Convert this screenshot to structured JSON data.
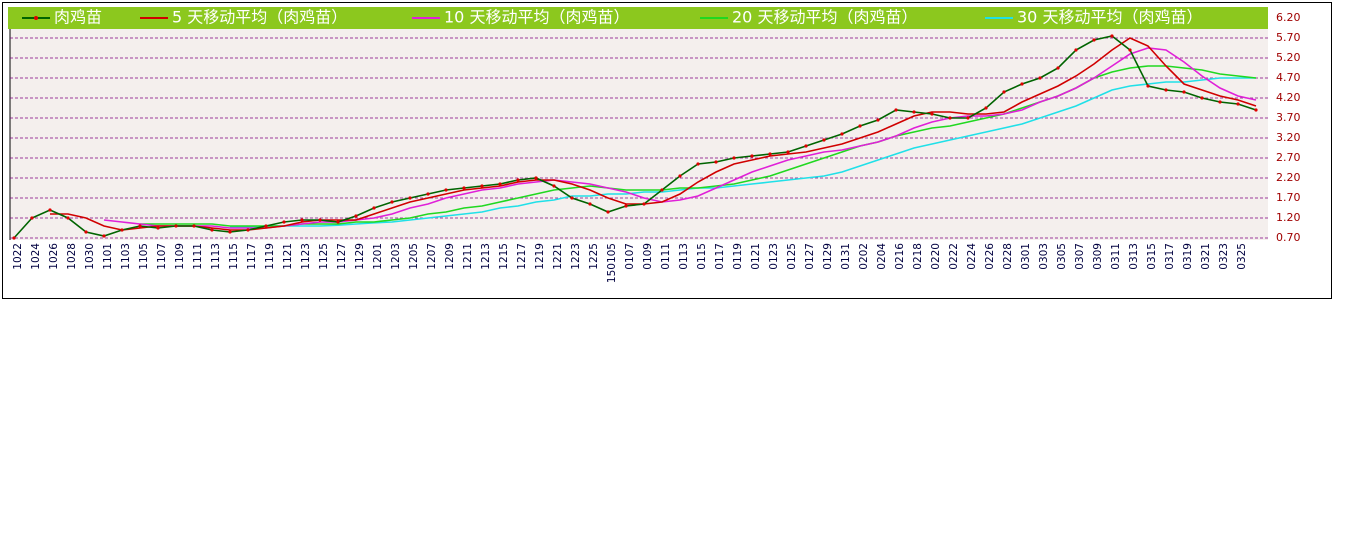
{
  "chart_data": {
    "type": "line",
    "categories": [
      "1022",
      "1024",
      "1026",
      "1028",
      "1030",
      "1101",
      "1103",
      "1105",
      "1107",
      "1109",
      "1111",
      "1113",
      "1115",
      "1117",
      "1119",
      "1121",
      "1123",
      "1125",
      "1127",
      "1129",
      "1201",
      "1203",
      "1205",
      "1207",
      "1209",
      "1211",
      "1213",
      "1215",
      "1217",
      "1219",
      "1221",
      "1223",
      "1225",
      "150105",
      "0107",
      "0109",
      "0111",
      "0113",
      "0115",
      "0117",
      "0119",
      "0121",
      "0123",
      "0125",
      "0127",
      "0129",
      "0131",
      "0202",
      "0204",
      "0216",
      "0218",
      "0220",
      "0222",
      "0224",
      "0226",
      "0228",
      "0301",
      "0303",
      "0305",
      "0307",
      "0309",
      "0311",
      "0313",
      "0315",
      "0317",
      "0319",
      "0321",
      "0323",
      "0325",
      null
    ],
    "series": [
      {
        "name": "肉鸡苗",
        "color": "#006400",
        "marker_color": "#e00000",
        "values": [
          0.7,
          1.2,
          1.4,
          1.2,
          0.85,
          0.75,
          0.9,
          1.0,
          0.95,
          1.0,
          1.0,
          0.9,
          0.85,
          0.9,
          1.0,
          1.1,
          1.15,
          1.15,
          1.1,
          1.25,
          1.45,
          1.6,
          1.7,
          1.8,
          1.9,
          1.95,
          2.0,
          2.05,
          2.15,
          2.2,
          2.0,
          1.7,
          1.55,
          1.35,
          1.5,
          1.55,
          1.9,
          2.25,
          2.55,
          2.6,
          2.7,
          2.75,
          2.8,
          2.85,
          3.0,
          3.15,
          3.3,
          3.5,
          3.65,
          3.9,
          3.85,
          3.8,
          3.7,
          3.7,
          3.95,
          4.35,
          4.55,
          4.7,
          4.95,
          5.4,
          5.65,
          5.75,
          5.4,
          4.5,
          4.4,
          4.35,
          4.2,
          4.1,
          4.05,
          3.9
        ]
      },
      {
        "name": "5 天移动平均（肉鸡苗）",
        "color": "#d00000",
        "values": [
          null,
          null,
          1.3,
          1.3,
          1.2,
          1.0,
          0.9,
          0.95,
          1.0,
          1.0,
          1.0,
          0.95,
          0.9,
          0.9,
          0.95,
          1.0,
          1.1,
          1.15,
          1.15,
          1.15,
          1.3,
          1.45,
          1.6,
          1.7,
          1.8,
          1.9,
          1.95,
          2.0,
          2.1,
          2.15,
          2.15,
          2.05,
          1.9,
          1.7,
          1.55,
          1.55,
          1.6,
          1.8,
          2.1,
          2.35,
          2.55,
          2.65,
          2.75,
          2.8,
          2.85,
          2.95,
          3.05,
          3.2,
          3.35,
          3.55,
          3.75,
          3.85,
          3.85,
          3.8,
          3.8,
          3.85,
          4.1,
          4.3,
          4.5,
          4.75,
          5.05,
          5.4,
          5.7,
          5.5,
          5.0,
          4.55,
          4.4,
          4.25,
          4.15,
          4.0
        ]
      },
      {
        "name": "10 天移动平均（肉鸡苗）",
        "color": "#e020d8",
        "values": [
          null,
          null,
          null,
          null,
          null,
          1.15,
          1.1,
          1.05,
          1.0,
          1.0,
          1.0,
          1.0,
          0.95,
          0.95,
          0.95,
          1.0,
          1.05,
          1.1,
          1.1,
          1.15,
          1.2,
          1.3,
          1.45,
          1.55,
          1.7,
          1.8,
          1.9,
          1.95,
          2.05,
          2.1,
          2.15,
          2.1,
          2.05,
          1.95,
          1.85,
          1.7,
          1.6,
          1.65,
          1.75,
          1.95,
          2.15,
          2.35,
          2.5,
          2.65,
          2.75,
          2.85,
          2.9,
          3.0,
          3.1,
          3.25,
          3.45,
          3.6,
          3.7,
          3.75,
          3.75,
          3.8,
          3.9,
          4.1,
          4.25,
          4.45,
          4.7,
          5.0,
          5.3,
          5.45,
          5.4,
          5.1,
          4.75,
          4.45,
          4.25,
          4.15
        ]
      },
      {
        "name": "20 天移动平均（肉鸡苗）",
        "color": "#20d820",
        "values": [
          null,
          null,
          null,
          null,
          null,
          null,
          null,
          1.05,
          1.05,
          1.05,
          1.05,
          1.05,
          1.0,
          1.0,
          1.0,
          1.0,
          1.05,
          1.05,
          1.05,
          1.1,
          1.1,
          1.15,
          1.2,
          1.3,
          1.35,
          1.45,
          1.5,
          1.6,
          1.7,
          1.8,
          1.9,
          1.95,
          2.0,
          1.95,
          1.9,
          1.9,
          1.9,
          1.95,
          1.95,
          2.0,
          2.05,
          2.15,
          2.25,
          2.4,
          2.55,
          2.7,
          2.85,
          3.0,
          3.1,
          3.25,
          3.35,
          3.45,
          3.5,
          3.6,
          3.7,
          3.8,
          3.95,
          4.1,
          4.25,
          4.45,
          4.7,
          4.85,
          4.95,
          5.0,
          5.0,
          4.95,
          4.9,
          4.8,
          4.75,
          4.7
        ]
      },
      {
        "name": "30 天移动平均（肉鸡苗）",
        "color": "#20e0e8",
        "values": [
          null,
          null,
          null,
          null,
          null,
          null,
          null,
          null,
          null,
          null,
          null,
          null,
          0.98,
          0.98,
          1.0,
          1.0,
          1.0,
          1.0,
          1.02,
          1.05,
          1.08,
          1.1,
          1.15,
          1.2,
          1.25,
          1.3,
          1.35,
          1.45,
          1.5,
          1.6,
          1.65,
          1.75,
          1.75,
          1.8,
          1.8,
          1.85,
          1.85,
          1.9,
          1.95,
          1.95,
          2.0,
          2.05,
          2.1,
          2.15,
          2.2,
          2.25,
          2.35,
          2.5,
          2.65,
          2.8,
          2.95,
          3.05,
          3.15,
          3.25,
          3.35,
          3.45,
          3.55,
          3.7,
          3.85,
          4.0,
          4.2,
          4.4,
          4.5,
          4.55,
          4.6,
          4.6,
          4.65,
          4.7,
          4.7,
          4.7
        ]
      }
    ],
    "ylim": [
      0.7,
      6.2
    ],
    "yticks": [
      {
        "value": 0.7,
        "label": "0.70"
      },
      {
        "value": 1.2,
        "label": "1.20"
      },
      {
        "value": 1.7,
        "label": "1.70"
      },
      {
        "value": 2.2,
        "label": "2.20"
      },
      {
        "value": 2.7,
        "label": "2.70"
      },
      {
        "value": 3.2,
        "label": "3.20"
      },
      {
        "value": 3.7,
        "label": "3.70"
      },
      {
        "value": 4.2,
        "label": "4.20"
      },
      {
        "value": 4.7,
        "label": "4.70"
      },
      {
        "value": 5.2,
        "label": "5.20"
      },
      {
        "value": 5.7,
        "label": "5.70"
      },
      {
        "value": 6.2,
        "label": "6.20"
      }
    ],
    "grid": true,
    "grid_color": "#800080",
    "legend": "top"
  }
}
